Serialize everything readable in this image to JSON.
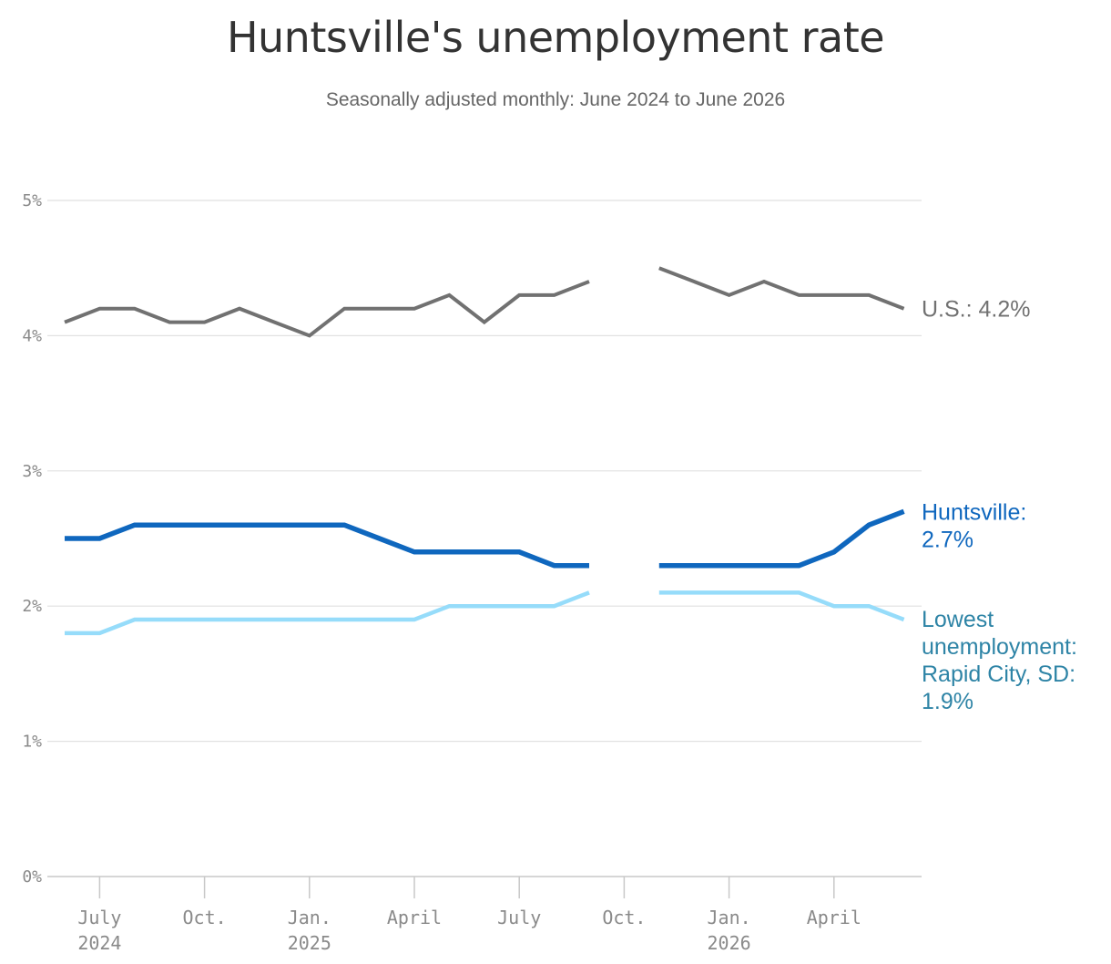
{
  "title": "Huntsville's unemployment rate",
  "subtitle": "Seasonally adjusted monthly: June 2024 to June 2026",
  "chart_data": {
    "type": "line",
    "x": [
      "2024-06",
      "2024-07",
      "2024-08",
      "2024-09",
      "2024-10",
      "2024-11",
      "2024-12",
      "2025-01",
      "2025-02",
      "2025-03",
      "2025-04",
      "2025-05",
      "2025-06",
      "2025-07",
      "2025-08",
      "2025-09",
      "2025-10",
      "2025-11",
      "2025-12",
      "2026-01",
      "2026-02",
      "2026-03",
      "2026-04",
      "2026-05",
      "2026-06"
    ],
    "ylim": [
      0,
      5
    ],
    "yticks": [
      0,
      1,
      2,
      3,
      4,
      5
    ],
    "ytick_labels": [
      "0%",
      "1%",
      "2%",
      "3%",
      "4%",
      "5%"
    ],
    "xticks": [
      {
        "x": "2024-07",
        "line1": "July",
        "line2": "2024"
      },
      {
        "x": "2024-10",
        "line1": "Oct.",
        "line2": ""
      },
      {
        "x": "2025-01",
        "line1": "Jan.",
        "line2": "2025"
      },
      {
        "x": "2025-04",
        "line1": "April",
        "line2": ""
      },
      {
        "x": "2025-07",
        "line1": "July",
        "line2": ""
      },
      {
        "x": "2025-10",
        "line1": "Oct.",
        "line2": ""
      },
      {
        "x": "2026-01",
        "line1": "Jan.",
        "line2": "2026"
      },
      {
        "x": "2026-04",
        "line1": "April",
        "line2": ""
      }
    ],
    "grid": true,
    "series": [
      {
        "name": "U.S.",
        "color": "#717171",
        "values": [
          4.1,
          4.2,
          4.2,
          4.1,
          4.1,
          4.2,
          4.1,
          4.0,
          4.2,
          4.2,
          4.2,
          4.3,
          4.1,
          4.3,
          4.3,
          4.4,
          null,
          4.5,
          4.4,
          4.3,
          4.4,
          4.3,
          4.3,
          4.3,
          4.2
        ],
        "label_lines": [
          "U.S.: 4.2%"
        ]
      },
      {
        "name": "Huntsville",
        "color": "#0f67be",
        "values": [
          2.5,
          2.5,
          2.6,
          2.6,
          2.6,
          2.6,
          2.6,
          2.6,
          2.6,
          2.5,
          2.4,
          2.4,
          2.4,
          2.4,
          2.3,
          2.3,
          null,
          2.3,
          2.3,
          2.3,
          2.3,
          2.3,
          2.4,
          2.6,
          2.7
        ],
        "label_lines": [
          "Huntsville:",
          "2.7%"
        ]
      },
      {
        "name": "Rapid City, SD",
        "color": "#96dcfa",
        "label_color": "#2e84a6",
        "values": [
          1.8,
          1.8,
          1.9,
          1.9,
          1.9,
          1.9,
          1.9,
          1.9,
          1.9,
          1.9,
          1.9,
          2.0,
          2.0,
          2.0,
          2.0,
          2.1,
          null,
          2.1,
          2.1,
          2.1,
          2.1,
          2.1,
          2.0,
          2.0,
          1.9
        ],
        "label_lines": [
          "Lowest",
          "unemployment:",
          "Rapid City, SD:",
          "1.9%"
        ]
      }
    ]
  }
}
